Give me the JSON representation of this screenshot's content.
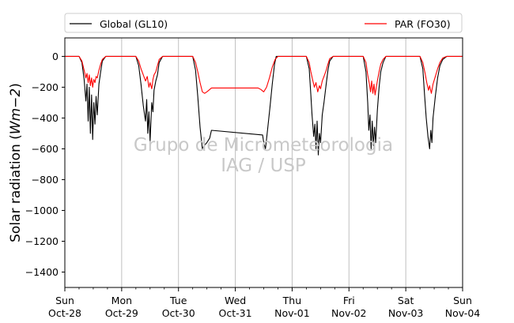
{
  "chart_data": {
    "type": "line",
    "ylabel": "Solar radiation",
    "ylabel_unit": "Wm−2",
    "ylim": [
      -1500,
      120
    ],
    "xlim": [
      "2018-10-28",
      "2018-11-04"
    ],
    "yticks": [
      0,
      -200,
      -400,
      -600,
      -800,
      -1000,
      -1200,
      -1400
    ],
    "ytick_labels": [
      "0",
      "−200",
      "−400",
      "−600",
      "−800",
      "−1000",
      "−1200",
      "−1400"
    ],
    "xticks": [
      {
        "day": "Sun",
        "date": "Oct-28"
      },
      {
        "day": "Mon",
        "date": "Oct-29"
      },
      {
        "day": "Tue",
        "date": "Oct-30"
      },
      {
        "day": "Wed",
        "date": "Oct-31"
      },
      {
        "day": "Thu",
        "date": "Nov-01"
      },
      {
        "day": "Fri",
        "date": "Nov-02"
      },
      {
        "day": "Sat",
        "date": "Nov-03"
      },
      {
        "day": "Sun",
        "date": "Nov-04"
      }
    ],
    "grid": "vertical",
    "legend_placement": "top",
    "legend": [
      "Global (GL10)",
      "PAR (FO30)"
    ],
    "watermark": [
      "Grupo de Micrometeorologia",
      "IAG / USP"
    ],
    "series": [
      {
        "name": "Global (GL10)",
        "color": "#000000",
        "points": [
          [
            0.0,
            0
          ],
          [
            0.25,
            0
          ],
          [
            0.3,
            -40
          ],
          [
            0.34,
            -150
          ],
          [
            0.37,
            -290
          ],
          [
            0.39,
            -180
          ],
          [
            0.41,
            -420
          ],
          [
            0.43,
            -200
          ],
          [
            0.45,
            -500
          ],
          [
            0.47,
            -250
          ],
          [
            0.49,
            -540
          ],
          [
            0.51,
            -300
          ],
          [
            0.53,
            -440
          ],
          [
            0.55,
            -260
          ],
          [
            0.57,
            -380
          ],
          [
            0.6,
            -180
          ],
          [
            0.63,
            -100
          ],
          [
            0.66,
            -30
          ],
          [
            0.72,
            0
          ],
          [
            1.25,
            0
          ],
          [
            1.3,
            -60
          ],
          [
            1.34,
            -180
          ],
          [
            1.38,
            -320
          ],
          [
            1.42,
            -420
          ],
          [
            1.44,
            -280
          ],
          [
            1.46,
            -500
          ],
          [
            1.48,
            -360
          ],
          [
            1.5,
            -550
          ],
          [
            1.53,
            -300
          ],
          [
            1.55,
            -360
          ],
          [
            1.57,
            -220
          ],
          [
            1.6,
            -160
          ],
          [
            1.63,
            -120
          ],
          [
            1.66,
            -40
          ],
          [
            1.72,
            0
          ],
          [
            2.25,
            0
          ],
          [
            2.3,
            -90
          ],
          [
            2.34,
            -260
          ],
          [
            2.38,
            -460
          ],
          [
            2.42,
            -600
          ],
          [
            2.45,
            -580
          ],
          [
            2.5,
            -560
          ],
          [
            2.55,
            -530
          ],
          [
            2.58,
            -480
          ],
          [
            3.48,
            -510
          ],
          [
            3.5,
            -560
          ],
          [
            3.53,
            -600
          ],
          [
            3.57,
            -470
          ],
          [
            3.61,
            -330
          ],
          [
            3.65,
            -180
          ],
          [
            3.69,
            -50
          ],
          [
            3.72,
            0
          ],
          [
            4.25,
            0
          ],
          [
            4.3,
            -80
          ],
          [
            4.33,
            -250
          ],
          [
            4.35,
            -380
          ],
          [
            4.38,
            -520
          ],
          [
            4.4,
            -440
          ],
          [
            4.42,
            -600
          ],
          [
            4.44,
            -420
          ],
          [
            4.46,
            -640
          ],
          [
            4.48,
            -500
          ],
          [
            4.5,
            -560
          ],
          [
            4.53,
            -380
          ],
          [
            4.56,
            -300
          ],
          [
            4.6,
            -180
          ],
          [
            4.63,
            -90
          ],
          [
            4.66,
            -30
          ],
          [
            4.72,
            0
          ],
          [
            5.25,
            0
          ],
          [
            5.3,
            -100
          ],
          [
            5.33,
            -300
          ],
          [
            5.35,
            -480
          ],
          [
            5.37,
            -380
          ],
          [
            5.39,
            -600
          ],
          [
            5.41,
            -420
          ],
          [
            5.43,
            -580
          ],
          [
            5.45,
            -460
          ],
          [
            5.47,
            -560
          ],
          [
            5.5,
            -350
          ],
          [
            5.53,
            -200
          ],
          [
            5.56,
            -100
          ],
          [
            5.6,
            -40
          ],
          [
            5.65,
            0
          ],
          [
            6.25,
            0
          ],
          [
            6.3,
            -80
          ],
          [
            6.33,
            -250
          ],
          [
            6.36,
            -400
          ],
          [
            6.39,
            -520
          ],
          [
            6.42,
            -600
          ],
          [
            6.44,
            -480
          ],
          [
            6.46,
            -560
          ],
          [
            6.48,
            -400
          ],
          [
            6.52,
            -260
          ],
          [
            6.56,
            -140
          ],
          [
            6.6,
            -60
          ],
          [
            6.65,
            -20
          ],
          [
            6.72,
            0
          ],
          [
            7.0,
            0
          ]
        ]
      },
      {
        "name": "PAR (FO30)",
        "color": "#ff0000",
        "points": [
          [
            0.0,
            0
          ],
          [
            0.25,
            0
          ],
          [
            0.3,
            -30
          ],
          [
            0.34,
            -90
          ],
          [
            0.37,
            -140
          ],
          [
            0.39,
            -110
          ],
          [
            0.41,
            -170
          ],
          [
            0.43,
            -120
          ],
          [
            0.45,
            -190
          ],
          [
            0.47,
            -140
          ],
          [
            0.49,
            -200
          ],
          [
            0.51,
            -150
          ],
          [
            0.53,
            -170
          ],
          [
            0.55,
            -130
          ],
          [
            0.57,
            -140
          ],
          [
            0.6,
            -90
          ],
          [
            0.63,
            -50
          ],
          [
            0.66,
            -20
          ],
          [
            0.72,
            0
          ],
          [
            1.25,
            0
          ],
          [
            1.3,
            -30
          ],
          [
            1.34,
            -80
          ],
          [
            1.38,
            -120
          ],
          [
            1.42,
            -160
          ],
          [
            1.45,
            -130
          ],
          [
            1.48,
            -200
          ],
          [
            1.5,
            -170
          ],
          [
            1.53,
            -210
          ],
          [
            1.55,
            -150
          ],
          [
            1.57,
            -120
          ],
          [
            1.6,
            -100
          ],
          [
            1.63,
            -60
          ],
          [
            1.66,
            -20
          ],
          [
            1.72,
            0
          ],
          [
            2.25,
            0
          ],
          [
            2.3,
            -40
          ],
          [
            2.34,
            -100
          ],
          [
            2.38,
            -170
          ],
          [
            2.42,
            -230
          ],
          [
            2.46,
            -240
          ],
          [
            2.5,
            -230
          ],
          [
            2.55,
            -215
          ],
          [
            2.58,
            -205
          ],
          [
            3.4,
            -205
          ],
          [
            3.45,
            -215
          ],
          [
            3.5,
            -230
          ],
          [
            3.55,
            -200
          ],
          [
            3.6,
            -140
          ],
          [
            3.65,
            -70
          ],
          [
            3.7,
            -20
          ],
          [
            3.75,
            0
          ],
          [
            4.25,
            0
          ],
          [
            4.3,
            -40
          ],
          [
            4.33,
            -100
          ],
          [
            4.36,
            -150
          ],
          [
            4.39,
            -200
          ],
          [
            4.42,
            -170
          ],
          [
            4.45,
            -230
          ],
          [
            4.48,
            -190
          ],
          [
            4.5,
            -210
          ],
          [
            4.53,
            -160
          ],
          [
            4.56,
            -130
          ],
          [
            4.6,
            -90
          ],
          [
            4.63,
            -50
          ],
          [
            4.66,
            -15
          ],
          [
            4.72,
            0
          ],
          [
            5.25,
            0
          ],
          [
            5.3,
            -40
          ],
          [
            5.33,
            -120
          ],
          [
            5.36,
            -180
          ],
          [
            5.38,
            -230
          ],
          [
            5.4,
            -160
          ],
          [
            5.42,
            -240
          ],
          [
            5.44,
            -180
          ],
          [
            5.46,
            -250
          ],
          [
            5.5,
            -160
          ],
          [
            5.53,
            -100
          ],
          [
            5.56,
            -50
          ],
          [
            5.6,
            -20
          ],
          [
            5.65,
            0
          ],
          [
            6.25,
            0
          ],
          [
            6.3,
            -40
          ],
          [
            6.34,
            -110
          ],
          [
            6.37,
            -170
          ],
          [
            6.4,
            -220
          ],
          [
            6.42,
            -190
          ],
          [
            6.45,
            -240
          ],
          [
            6.48,
            -180
          ],
          [
            6.52,
            -130
          ],
          [
            6.56,
            -80
          ],
          [
            6.6,
            -40
          ],
          [
            6.65,
            -10
          ],
          [
            6.72,
            0
          ],
          [
            7.0,
            0
          ]
        ]
      }
    ]
  }
}
